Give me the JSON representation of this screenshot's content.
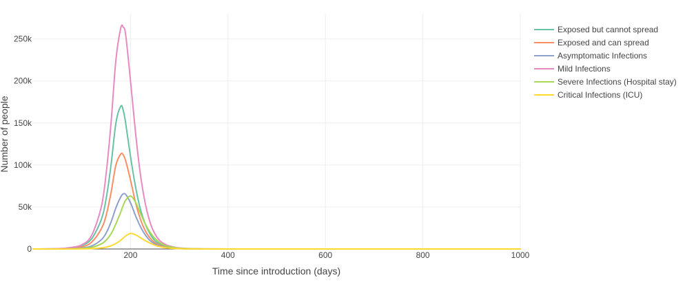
{
  "chart_data": {
    "type": "line",
    "xlabel": "Time since introduction (days)",
    "ylabel": "Number of people",
    "xlim": [
      0,
      1000
    ],
    "ylim": [
      0,
      280000
    ],
    "xticks": [
      {
        "value": 200,
        "label": "200"
      },
      {
        "value": 400,
        "label": "400"
      },
      {
        "value": 600,
        "label": "600"
      },
      {
        "value": 800,
        "label": "800"
      },
      {
        "value": 1000,
        "label": "1000"
      }
    ],
    "yticks": [
      {
        "value": 0,
        "label": "0"
      },
      {
        "value": 50000,
        "label": "50k"
      },
      {
        "value": 100000,
        "label": "100k"
      },
      {
        "value": 150000,
        "label": "150k"
      },
      {
        "value": 200000,
        "label": "200k"
      },
      {
        "value": 250000,
        "label": "250k"
      }
    ],
    "grid": true,
    "legend_position": "top-right",
    "x": [
      0,
      50,
      80,
      100,
      120,
      140,
      150,
      160,
      170,
      180,
      185,
      190,
      200,
      210,
      220,
      230,
      240,
      250,
      260,
      270,
      280,
      300,
      330,
      350,
      400,
      500,
      600,
      800,
      1000
    ],
    "series": [
      {
        "name": "Exposed but cannot spread",
        "color": "#66c2a5",
        "values": [
          0,
          300,
          1500,
          4000,
          12000,
          35000,
          60000,
          100000,
          150000,
          170000,
          165000,
          150000,
          110000,
          75000,
          48000,
          30000,
          18000,
          10000,
          6000,
          3500,
          2000,
          800,
          200,
          80,
          10,
          0,
          0,
          0,
          0
        ]
      },
      {
        "name": "Exposed and can spread",
        "color": "#fc8d62",
        "values": [
          0,
          200,
          1000,
          2500,
          8000,
          24000,
          40000,
          67000,
          100000,
          113000,
          112000,
          105000,
          82000,
          56000,
          36000,
          22000,
          13000,
          7500,
          4500,
          2500,
          1500,
          500,
          150,
          50,
          5,
          0,
          0,
          0,
          0
        ]
      },
      {
        "name": "Asymptomatic Infections",
        "color": "#8da0cb",
        "values": [
          0,
          100,
          500,
          1200,
          3500,
          11000,
          19000,
          32000,
          49000,
          62000,
          65500,
          65000,
          55000,
          40000,
          27000,
          17000,
          10000,
          6000,
          3500,
          2000,
          1200,
          400,
          100,
          40,
          5,
          0,
          0,
          0,
          0
        ]
      },
      {
        "name": "Mild Infections",
        "color": "#e78ac3",
        "values": [
          0,
          400,
          2000,
          5000,
          16000,
          50000,
          90000,
          150000,
          225000,
          263000,
          264000,
          255000,
          200000,
          140000,
          90000,
          55000,
          32000,
          18000,
          10000,
          6000,
          3500,
          1200,
          300,
          100,
          10,
          0,
          0,
          0,
          0
        ]
      },
      {
        "name": "Severe Infections (Hospital stay)",
        "color": "#a6d854",
        "values": [
          0,
          50,
          200,
          600,
          2000,
          6000,
          10500,
          18000,
          30000,
          44000,
          52000,
          58000,
          63000,
          56000,
          43000,
          30000,
          20000,
          12500,
          7500,
          4500,
          2700,
          900,
          250,
          100,
          10,
          0,
          0,
          0,
          0
        ]
      },
      {
        "name": "Critical Infections (ICU)",
        "color": "#ffd92f",
        "values": [
          0,
          10,
          50,
          150,
          400,
          1200,
          2200,
          3800,
          6500,
          10500,
          13000,
          15500,
          18500,
          17000,
          13500,
          10000,
          7000,
          4500,
          2800,
          1700,
          1000,
          350,
          100,
          40,
          5,
          0,
          0,
          0,
          0
        ]
      }
    ]
  }
}
